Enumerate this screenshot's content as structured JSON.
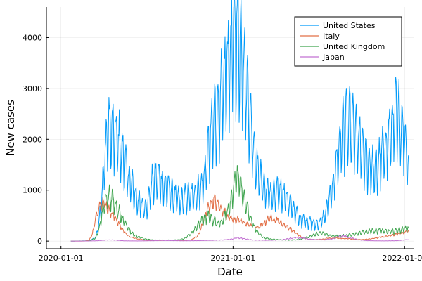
{
  "chart_data": {
    "type": "line",
    "title": "",
    "xlabel": "Date",
    "ylabel": "New cases",
    "x_tick_labels": [
      "2020-01-01",
      "2021-01-01",
      "2022-01-01"
    ],
    "x_ticks": [
      "2020-01-01",
      "2021-01-01",
      "2022-01-01"
    ],
    "y_tick_labels": [
      "0",
      "1000",
      "2000",
      "3000",
      "4000"
    ],
    "y_ticks": [
      0,
      1000,
      2000,
      3000,
      4000
    ],
    "xlim": [
      "2019-12-01",
      "2022-01-20"
    ],
    "ylim": [
      -150,
      4600
    ],
    "grid": true,
    "legend_position": "top-right",
    "series": [
      {
        "name": "United States",
        "color": "#009af9",
        "dates": [
          "2020-01-22",
          "2020-03-01",
          "2020-03-15",
          "2020-03-22",
          "2020-03-29",
          "2020-04-05",
          "2020-04-12",
          "2020-04-19",
          "2020-04-26",
          "2020-05-03",
          "2020-05-10",
          "2020-05-17",
          "2020-05-24",
          "2020-05-31",
          "2020-06-07",
          "2020-06-14",
          "2020-06-21",
          "2020-06-28",
          "2020-07-05",
          "2020-07-12",
          "2020-07-19",
          "2020-07-26",
          "2020-08-02",
          "2020-08-09",
          "2020-08-16",
          "2020-08-23",
          "2020-08-30",
          "2020-09-06",
          "2020-09-13",
          "2020-09-20",
          "2020-09-27",
          "2020-10-04",
          "2020-10-11",
          "2020-10-18",
          "2020-10-25",
          "2020-11-01",
          "2020-11-08",
          "2020-11-15",
          "2020-11-22",
          "2020-11-29",
          "2020-12-06",
          "2020-12-13",
          "2020-12-20",
          "2020-12-27",
          "2021-01-03",
          "2021-01-10",
          "2021-01-17",
          "2021-01-24",
          "2021-01-31",
          "2021-02-07",
          "2021-02-14",
          "2021-02-21",
          "2021-02-28",
          "2021-03-07",
          "2021-03-14",
          "2021-03-21",
          "2021-03-28",
          "2021-04-04",
          "2021-04-11",
          "2021-04-18",
          "2021-04-25",
          "2021-05-02",
          "2021-05-09",
          "2021-05-16",
          "2021-05-23",
          "2021-05-30",
          "2021-06-06",
          "2021-06-13",
          "2021-06-20",
          "2021-06-27",
          "2021-07-04",
          "2021-07-11",
          "2021-07-18",
          "2021-07-25",
          "2021-08-01",
          "2021-08-08",
          "2021-08-15",
          "2021-08-22",
          "2021-08-29",
          "2021-09-05",
          "2021-09-12",
          "2021-09-19",
          "2021-09-26",
          "2021-10-03",
          "2021-10-10",
          "2021-10-17",
          "2021-10-24",
          "2021-10-31",
          "2021-11-07",
          "2021-11-14",
          "2021-11-21",
          "2021-11-28",
          "2021-12-05",
          "2021-12-12",
          "2021-12-19",
          "2021-12-26",
          "2022-01-02",
          "2022-01-09"
        ],
        "values": [
          0,
          5,
          70,
          400,
          1000,
          1900,
          2300,
          2200,
          2100,
          2000,
          1750,
          1500,
          1300,
          1100,
          900,
          800,
          700,
          680,
          800,
          1150,
          1250,
          1250,
          1200,
          1100,
          1050,
          950,
          880,
          830,
          800,
          850,
          900,
          900,
          950,
          1000,
          1050,
          1300,
          1700,
          2100,
          2450,
          2500,
          2800,
          3150,
          3500,
          3800,
          4100,
          4200,
          3900,
          3500,
          3000,
          2400,
          1900,
          1500,
          1250,
          1100,
          1000,
          950,
          920,
          950,
          1000,
          950,
          850,
          750,
          650,
          550,
          450,
          420,
          400,
          380,
          350,
          340,
          360,
          450,
          600,
          800,
          1100,
          1500,
          1900,
          2200,
          2300,
          2300,
          2250,
          2150,
          2000,
          1800,
          1650,
          1550,
          1450,
          1400,
          1550,
          1750,
          1900,
          2050,
          2300,
          2500,
          2450,
          2350,
          2000,
          1500
        ]
      },
      {
        "name": "Italy",
        "color": "#e26f46",
        "dates": [
          "2020-01-22",
          "2020-02-20",
          "2020-03-01",
          "2020-03-08",
          "2020-03-15",
          "2020-03-22",
          "2020-03-29",
          "2020-04-05",
          "2020-04-12",
          "2020-04-19",
          "2020-04-26",
          "2020-05-03",
          "2020-05-10",
          "2020-05-17",
          "2020-05-24",
          "2020-05-31",
          "2020-06-14",
          "2020-06-28",
          "2020-07-12",
          "2020-07-26",
          "2020-08-09",
          "2020-08-23",
          "2020-09-06",
          "2020-09-20",
          "2020-10-04",
          "2020-10-18",
          "2020-10-25",
          "2020-11-01",
          "2020-11-08",
          "2020-11-15",
          "2020-11-22",
          "2020-11-29",
          "2020-12-06",
          "2020-12-13",
          "2020-12-20",
          "2020-12-27",
          "2021-01-03",
          "2021-01-10",
          "2021-01-17",
          "2021-01-24",
          "2021-01-31",
          "2021-02-07",
          "2021-02-14",
          "2021-02-21",
          "2021-02-28",
          "2021-03-07",
          "2021-03-14",
          "2021-03-21",
          "2021-03-28",
          "2021-04-04",
          "2021-04-11",
          "2021-04-18",
          "2021-04-25",
          "2021-05-02",
          "2021-05-09",
          "2021-05-16",
          "2021-05-23",
          "2021-05-30",
          "2021-06-13",
          "2021-06-27",
          "2021-07-11",
          "2021-07-25",
          "2021-08-08",
          "2021-08-22",
          "2021-09-05",
          "2021-09-19",
          "2021-10-03",
          "2021-10-17",
          "2021-10-31",
          "2021-11-14",
          "2021-11-28",
          "2021-12-12",
          "2021-12-26",
          "2022-01-09"
        ],
        "values": [
          0,
          0,
          20,
          150,
          450,
          700,
          780,
          720,
          620,
          540,
          450,
          340,
          240,
          160,
          100,
          70,
          40,
          20,
          12,
          10,
          15,
          20,
          15,
          15,
          25,
          100,
          250,
          450,
          650,
          750,
          800,
          730,
          650,
          580,
          500,
          450,
          430,
          420,
          400,
          370,
          330,
          320,
          300,
          280,
          280,
          350,
          420,
          450,
          440,
          430,
          370,
          330,
          290,
          250,
          200,
          150,
          100,
          60,
          35,
          30,
          40,
          60,
          60,
          50,
          45,
          35,
          30,
          40,
          60,
          80,
          100,
          130,
          160,
          200
        ]
      },
      {
        "name": "United Kingdom",
        "color": "#3ea44e",
        "dates": [
          "2020-01-22",
          "2020-03-01",
          "2020-03-15",
          "2020-03-22",
          "2020-03-29",
          "2020-04-05",
          "2020-04-12",
          "2020-04-19",
          "2020-04-26",
          "2020-05-03",
          "2020-05-10",
          "2020-05-17",
          "2020-05-24",
          "2020-05-31",
          "2020-06-14",
          "2020-06-28",
          "2020-07-12",
          "2020-07-26",
          "2020-08-09",
          "2020-08-23",
          "2020-09-06",
          "2020-09-20",
          "2020-10-04",
          "2020-10-18",
          "2020-10-25",
          "2020-11-01",
          "2020-11-08",
          "2020-11-15",
          "2020-11-22",
          "2020-11-29",
          "2020-12-06",
          "2020-12-13",
          "2020-12-20",
          "2020-12-27",
          "2021-01-03",
          "2021-01-10",
          "2021-01-17",
          "2021-01-24",
          "2021-01-31",
          "2021-02-07",
          "2021-02-14",
          "2021-02-21",
          "2021-02-28",
          "2021-03-07",
          "2021-03-21",
          "2021-04-04",
          "2021-04-18",
          "2021-05-02",
          "2021-05-16",
          "2021-05-30",
          "2021-06-13",
          "2021-06-27",
          "2021-07-11",
          "2021-07-25",
          "2021-08-08",
          "2021-08-22",
          "2021-09-05",
          "2021-09-19",
          "2021-10-03",
          "2021-10-17",
          "2021-10-31",
          "2021-11-14",
          "2021-11-28",
          "2021-12-12",
          "2021-12-26",
          "2022-01-09"
        ],
        "values": [
          0,
          5,
          60,
          250,
          550,
          850,
          900,
          850,
          700,
          600,
          450,
          350,
          250,
          150,
          80,
          40,
          25,
          20,
          20,
          20,
          25,
          50,
          150,
          300,
          400,
          450,
          500,
          450,
          400,
          350,
          380,
          450,
          600,
          800,
          1100,
          1300,
          1100,
          850,
          650,
          450,
          300,
          200,
          120,
          70,
          40,
          30,
          25,
          20,
          25,
          50,
          90,
          140,
          160,
          110,
          100,
          110,
          120,
          140,
          170,
          200,
          210,
          200,
          190,
          200,
          230,
          260
        ]
      },
      {
        "name": "Japan",
        "color": "#c271d2",
        "dates": [
          "2020-01-22",
          "2020-02-15",
          "2020-03-15",
          "2020-04-05",
          "2020-04-15",
          "2020-05-01",
          "2020-05-15",
          "2020-06-15",
          "2020-07-15",
          "2020-08-01",
          "2020-08-15",
          "2020-09-15",
          "2020-10-15",
          "2020-11-15",
          "2020-12-15",
          "2021-01-01",
          "2021-01-10",
          "2021-01-20",
          "2021-02-01",
          "2021-02-15",
          "2021-03-15",
          "2021-04-15",
          "2021-05-01",
          "2021-05-15",
          "2021-06-01",
          "2021-06-15",
          "2021-07-15",
          "2021-08-01",
          "2021-08-15",
          "2021-08-25",
          "2021-09-10",
          "2021-09-25",
          "2021-10-15",
          "2021-11-15",
          "2021-12-15",
          "2022-01-09"
        ],
        "values": [
          0,
          1,
          5,
          20,
          25,
          15,
          5,
          3,
          8,
          12,
          10,
          6,
          8,
          14,
          25,
          45,
          65,
          55,
          35,
          20,
          15,
          25,
          50,
          70,
          55,
          35,
          25,
          45,
          90,
          100,
          60,
          25,
          8,
          4,
          8,
          30
        ]
      }
    ]
  }
}
